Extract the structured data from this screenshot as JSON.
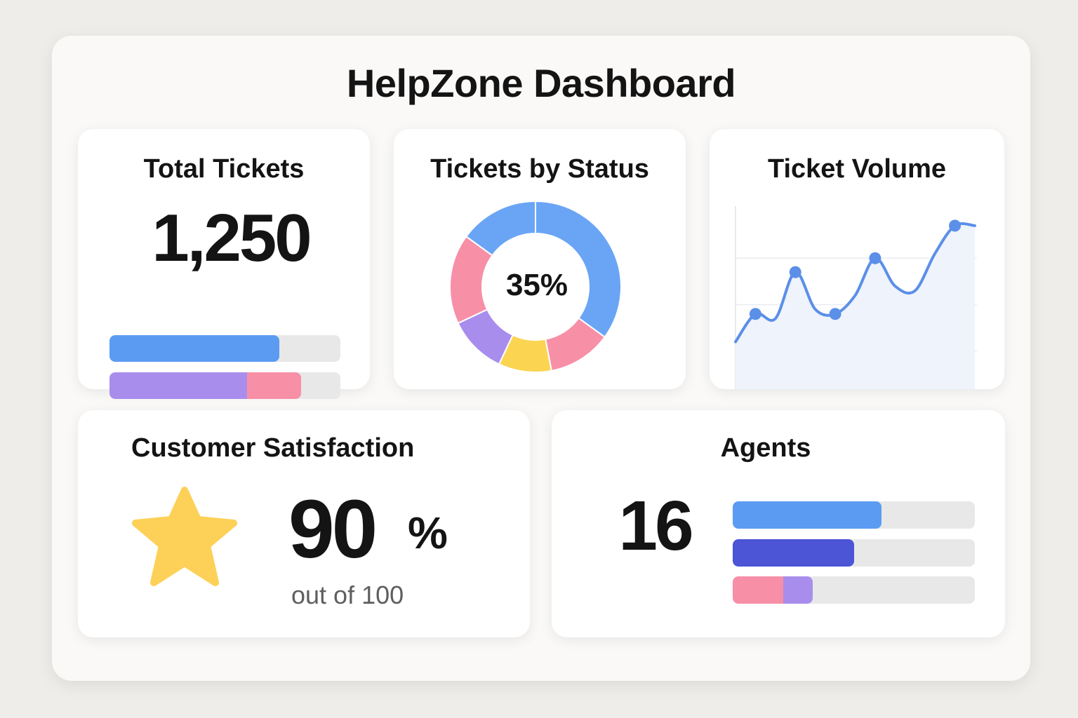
{
  "dashboard": {
    "title": "HelpZone Dashboard"
  },
  "colors": {
    "blue": "#5b9cf2",
    "pink": "#f78fa7",
    "yellow": "#fbd552",
    "purple": "#a98ded",
    "indigo": "#4b55d6",
    "track": "#e8e8e8",
    "star": "#fdd057"
  },
  "total_tickets": {
    "title": "Total Tickets",
    "value": "1,250",
    "bars": [
      {
        "segments": [
          {
            "fraction": 0.735,
            "color": "#5b9cf2"
          }
        ]
      },
      {
        "segments": [
          {
            "fraction": 0.595,
            "color": "#a98ded"
          },
          {
            "fraction": 0.235,
            "color": "#f78fa7"
          }
        ]
      }
    ]
  },
  "tickets_by_status": {
    "title": "Tickets by Status",
    "center_label": "35%",
    "chart_data": {
      "type": "pie",
      "values": [
        35,
        12,
        10,
        11,
        17,
        15
      ],
      "colors": [
        "#6aa5f5",
        "#f78fa7",
        "#fbd552",
        "#a98ded",
        "#f78fa7",
        "#6aa5f5"
      ]
    }
  },
  "ticket_volume": {
    "title": "Ticket Volume",
    "chart_data": {
      "type": "area",
      "x": [
        0,
        1,
        2,
        3,
        4,
        5,
        6,
        7,
        8,
        9,
        10,
        11,
        12
      ],
      "y": [
        1.2,
        1.8,
        1.7,
        2.7,
        1.9,
        1.8,
        2.2,
        3.0,
        2.4,
        2.3,
        3.1,
        3.7,
        3.7
      ],
      "markers": [
        1,
        3,
        5,
        7,
        11
      ],
      "ylim": [
        0,
        4
      ],
      "grid": true,
      "color": "#5b8fe8"
    }
  },
  "customer_satisfaction": {
    "title": "Customer Satisfaction",
    "icon": "star-icon",
    "value": "90",
    "unit": "%",
    "subtext": "out of 100"
  },
  "agents": {
    "title": "Agents",
    "value": "16",
    "bars": [
      {
        "segments": [
          {
            "fraction": 0.615,
            "color": "#5b9cf2"
          }
        ]
      },
      {
        "segments": [
          {
            "fraction": 0.5,
            "color": "#4b55d6"
          }
        ]
      },
      {
        "segments": [
          {
            "fraction": 0.21,
            "color": "#f78fa7"
          },
          {
            "fraction": 0.12,
            "color": "#a98ded"
          }
        ]
      }
    ]
  }
}
